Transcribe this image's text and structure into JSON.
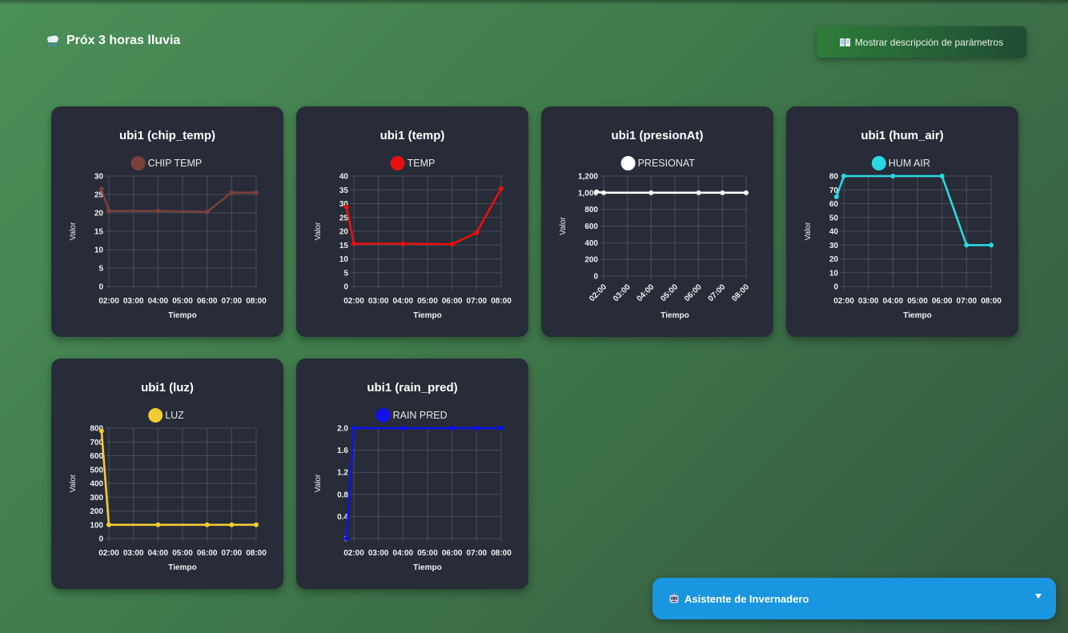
{
  "header": {
    "title": "Próx 3 horas lluvia",
    "params_button_label": "Mostrar descripción de parámetros"
  },
  "assistant": {
    "label": "Asistente de Invernadero"
  },
  "charts": [
    {
      "title": "ubi1 (chip_temp)",
      "chart_data": {
        "type": "line",
        "legend": "CHIP TEMP",
        "color": "#7a3f3b",
        "xlabel": "Tiempo",
        "ylabel": "Valor",
        "x_ticks": [
          "02:00",
          "03:00",
          "04:00",
          "05:00",
          "06:00",
          "07:00",
          "08:00"
        ],
        "y_ticks": [
          "0",
          "5",
          "10",
          "15",
          "20",
          "25",
          "30"
        ],
        "ylim": [
          0,
          30
        ],
        "x_rotate": false,
        "x": [
          1.7,
          2.0,
          4.0,
          6.0,
          7.0,
          8.0
        ],
        "y": [
          26.5,
          20.5,
          20.5,
          20.3,
          25.5,
          25.5
        ]
      }
    },
    {
      "title": "ubi1 (temp)",
      "chart_data": {
        "type": "line",
        "legend": "TEMP",
        "color": "#e8100e",
        "xlabel": "Tiempo",
        "ylabel": "Valor",
        "x_ticks": [
          "02:00",
          "03:00",
          "04:00",
          "05:00",
          "06:00",
          "07:00",
          "08:00"
        ],
        "y_ticks": [
          "0",
          "5",
          "10",
          "15",
          "20",
          "25",
          "30",
          "35",
          "40"
        ],
        "ylim": [
          0,
          40
        ],
        "x_rotate": false,
        "x": [
          1.7,
          2.0,
          4.0,
          6.0,
          7.0,
          8.0
        ],
        "y": [
          28.8,
          15.5,
          15.5,
          15.3,
          19.5,
          35.5
        ]
      }
    },
    {
      "title": "ubi1 (presionAt)",
      "chart_data": {
        "type": "line",
        "legend": "PRESIONAT",
        "color": "#ffffff",
        "xlabel": "Tiempo",
        "ylabel": "Valor",
        "x_ticks": [
          "02:00",
          "03:00",
          "04:00",
          "05:00",
          "06:00",
          "07:00",
          "08:00"
        ],
        "y_ticks": [
          "0",
          "200",
          "400",
          "600",
          "800",
          "1,000",
          "1,200"
        ],
        "ylim": [
          0,
          1200
        ],
        "x_rotate": true,
        "x": [
          1.7,
          2.0,
          4.0,
          6.0,
          7.0,
          8.0
        ],
        "y": [
          1010,
          1000,
          1000,
          1000,
          1000,
          1000
        ]
      }
    },
    {
      "title": "ubi1 (hum_air)",
      "chart_data": {
        "type": "line",
        "legend": "HUM AIR",
        "color": "#2ad8e2",
        "xlabel": "Tiempo",
        "ylabel": "Valor",
        "x_ticks": [
          "02:00",
          "03:00",
          "04:00",
          "05:00",
          "06:00",
          "07:00",
          "08:00"
        ],
        "y_ticks": [
          "0",
          "10",
          "20",
          "30",
          "40",
          "50",
          "60",
          "70",
          "80"
        ],
        "ylim": [
          0,
          80
        ],
        "x_rotate": false,
        "x": [
          1.7,
          2.0,
          4.0,
          6.0,
          7.0,
          8.0
        ],
        "y": [
          65,
          80,
          80,
          80,
          30,
          30
        ]
      }
    },
    {
      "title": "ubi1 (luz)",
      "chart_data": {
        "type": "line",
        "legend": "LUZ",
        "color": "#f2cc30",
        "xlabel": "Tiempo",
        "ylabel": "Valor",
        "x_ticks": [
          "02:00",
          "03:00",
          "04:00",
          "05:00",
          "06:00",
          "07:00",
          "08:00"
        ],
        "y_ticks": [
          "0",
          "100",
          "200",
          "300",
          "400",
          "500",
          "600",
          "700",
          "800"
        ],
        "ylim": [
          0,
          800
        ],
        "x_rotate": false,
        "x": [
          1.7,
          2.0,
          4.0,
          6.0,
          7.0,
          8.0
        ],
        "y": [
          780,
          100,
          100,
          100,
          100,
          100
        ]
      }
    },
    {
      "title": "ubi1 (rain_pred)",
      "chart_data": {
        "type": "line",
        "legend": "RAIN PRED",
        "color": "#1010ee",
        "xlabel": "Tiempo",
        "ylabel": "Valor",
        "x_ticks": [
          "02:00",
          "03:00",
          "04:00",
          "05:00",
          "06:00",
          "07:00",
          "08:00"
        ],
        "y_ticks": [
          "0",
          "0.4",
          "0.8",
          "1.2",
          "1.6",
          "2.0"
        ],
        "ylim": [
          0,
          2
        ],
        "x_rotate": false,
        "x": [
          1.7,
          2.0,
          4.0,
          6.0,
          7.0,
          8.0
        ],
        "y": [
          0,
          2,
          2,
          2,
          2,
          2
        ]
      }
    }
  ]
}
